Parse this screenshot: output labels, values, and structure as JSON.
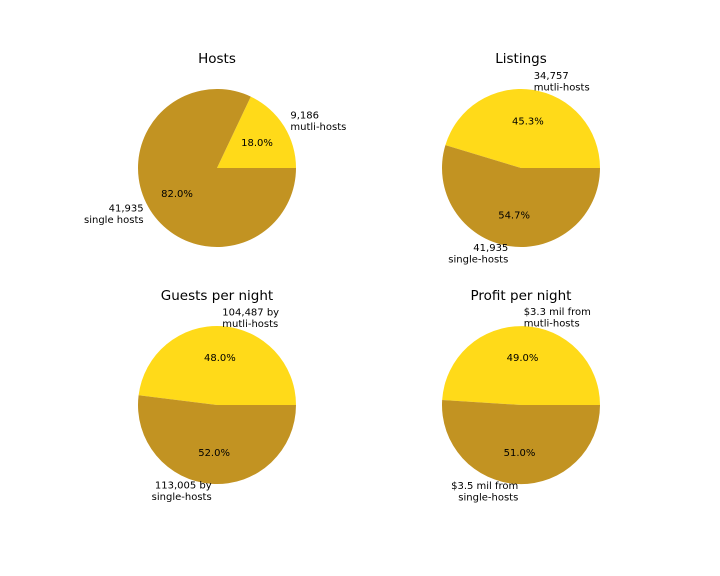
{
  "colors": {
    "single": "#C29322",
    "multi": "#FFDA19"
  },
  "chart_data": [
    {
      "type": "pie",
      "title": "Hosts",
      "slices": [
        {
          "label_lines": [
            "9,186",
            "mutli-hosts"
          ],
          "value": 9186,
          "pct_label": "18.0%",
          "color": "#FFDA19"
        },
        {
          "label_lines": [
            "41,935",
            "single hosts"
          ],
          "value": 41935,
          "pct_label": "82.0%",
          "color": "#C29322"
        }
      ]
    },
    {
      "type": "pie",
      "title": "Listings",
      "slices": [
        {
          "label_lines": [
            "34,757",
            "mutli-hosts"
          ],
          "value": 34757,
          "pct_label": "45.3%",
          "color": "#FFDA19"
        },
        {
          "label_lines": [
            "41,935",
            "single-hosts"
          ],
          "value": 41935,
          "pct_label": "54.7%",
          "color": "#C29322"
        }
      ]
    },
    {
      "type": "pie",
      "title": "Guests per night",
      "slices": [
        {
          "label_lines": [
            "104,487 by",
            "mutli-hosts"
          ],
          "value": 104487,
          "pct_label": "48.0%",
          "color": "#FFDA19"
        },
        {
          "label_lines": [
            "113,005 by",
            "single-hosts"
          ],
          "value": 113005,
          "pct_label": "52.0%",
          "color": "#C29322"
        }
      ]
    },
    {
      "type": "pie",
      "title": "Profit per night",
      "slices": [
        {
          "label_lines": [
            "$3.3 mil from",
            "mutli-hosts"
          ],
          "value": 49,
          "pct_label": "49.0%",
          "color": "#FFDA19"
        },
        {
          "label_lines": [
            "$3.5 mil from",
            "single-hosts"
          ],
          "value": 51,
          "pct_label": "51.0%",
          "color": "#C29322"
        }
      ]
    }
  ]
}
